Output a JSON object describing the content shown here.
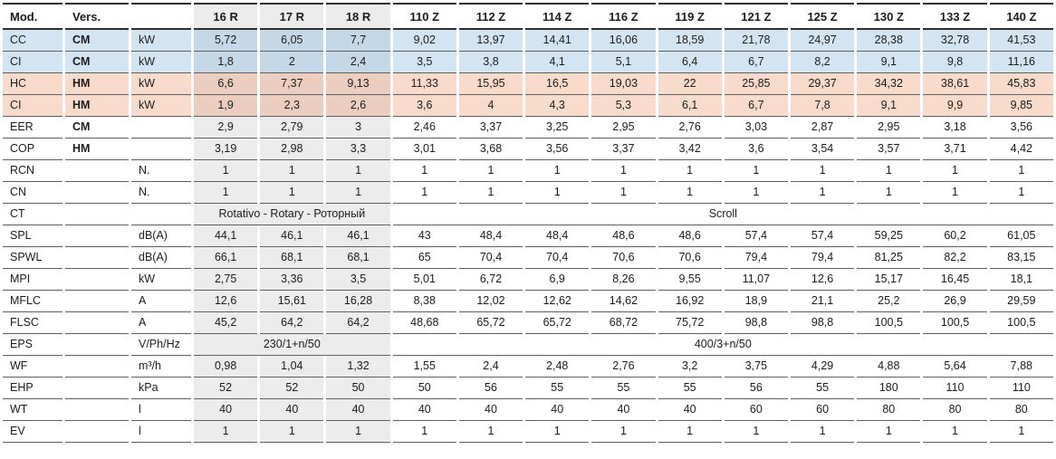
{
  "table": {
    "header": {
      "mod": "Mod.",
      "vers": "Vers.",
      "unit": ""
    },
    "columns": [
      "16 R",
      "17 R",
      "18 R",
      "110 Z",
      "112 Z",
      "114 Z",
      "116 Z",
      "119 Z",
      "121 Z",
      "125 Z",
      "130 Z",
      "133 Z",
      "140 Z"
    ],
    "r_column_count": 3,
    "colors": {
      "blue": "#d3e5f3",
      "blue_r": "#c5d8e8",
      "salmon": "#f8dbca",
      "salmon_r": "#ebcebf",
      "gray": "#ececec"
    },
    "rows": [
      {
        "label": "CC",
        "vers": "CM",
        "unit": "kW",
        "tint": "blue",
        "values": [
          "5,72",
          "6,05",
          "7,7",
          "9,02",
          "13,97",
          "14,41",
          "16,06",
          "18,59",
          "21,78",
          "24,97",
          "28,38",
          "32,78",
          "41,53"
        ]
      },
      {
        "label": "CI",
        "vers": "CM",
        "unit": "kW",
        "tint": "blue",
        "values": [
          "1,8",
          "2",
          "2,4",
          "3,5",
          "3,8",
          "4,1",
          "5,1",
          "6,4",
          "6,7",
          "8,2",
          "9,1",
          "9,8",
          "11,16"
        ]
      },
      {
        "label": "HC",
        "vers": "HM",
        "unit": "kW",
        "tint": "salmon",
        "values": [
          "6,6",
          "7,37",
          "9,13",
          "11,33",
          "15,95",
          "16,5",
          "19,03",
          "22",
          "25,85",
          "29,37",
          "34,32",
          "38,61",
          "45,83"
        ]
      },
      {
        "label": "CI",
        "vers": "HM",
        "unit": "kW",
        "tint": "salmon",
        "values": [
          "1,9",
          "2,3",
          "2,6",
          "3,6",
          "4",
          "4,3",
          "5,3",
          "6,1",
          "6,7",
          "7,8",
          "9,1",
          "9,9",
          "9,85"
        ]
      },
      {
        "label": "EER",
        "vers": "CM",
        "unit": "",
        "tint": null,
        "values": [
          "2,9",
          "2,79",
          "3",
          "2,46",
          "3,37",
          "3,25",
          "2,95",
          "2,76",
          "3,03",
          "2,87",
          "2,95",
          "3,18",
          "3,56"
        ]
      },
      {
        "label": "COP",
        "vers": "HM",
        "unit": "",
        "tint": null,
        "values": [
          "3,19",
          "2,98",
          "3,3",
          "3,01",
          "3,68",
          "3,56",
          "3,37",
          "3,42",
          "3,6",
          "3,54",
          "3,57",
          "3,71",
          "4,42"
        ]
      },
      {
        "label": "RCN",
        "vers": "",
        "unit": "N.",
        "tint": null,
        "values": [
          "1",
          "1",
          "1",
          "1",
          "1",
          "1",
          "1",
          "1",
          "1",
          "1",
          "1",
          "1",
          "1"
        ]
      },
      {
        "label": "CN",
        "vers": "",
        "unit": "N.",
        "tint": null,
        "values": [
          "1",
          "1",
          "1",
          "1",
          "1",
          "1",
          "1",
          "1",
          "1",
          "1",
          "1",
          "1",
          "1"
        ]
      },
      {
        "label": "CT",
        "vers": "",
        "unit": "",
        "tint": null,
        "span_r": "Rotativo - Rotary - Роторный",
        "span_z": "Scroll"
      },
      {
        "label": "SPL",
        "vers": "",
        "unit": "dB(A)",
        "tint": null,
        "values": [
          "44,1",
          "46,1",
          "46,1",
          "43",
          "48,4",
          "48,4",
          "48,6",
          "48,6",
          "57,4",
          "57,4",
          "59,25",
          "60,2",
          "61,05"
        ]
      },
      {
        "label": "SPWL",
        "vers": "",
        "unit": "dB(A)",
        "tint": null,
        "values": [
          "66,1",
          "68,1",
          "68,1",
          "65",
          "70,4",
          "70,4",
          "70,6",
          "70,6",
          "79,4",
          "79,4",
          "81,25",
          "82,2",
          "83,15"
        ]
      },
      {
        "label": "MPI",
        "vers": "",
        "unit": "kW",
        "tint": null,
        "values": [
          "2,75",
          "3,36",
          "3,5",
          "5,01",
          "6,72",
          "6,9",
          "8,26",
          "9,55",
          "11,07",
          "12,6",
          "15,17",
          "16,45",
          "18,1"
        ]
      },
      {
        "label": "MFLC",
        "vers": "",
        "unit": "A",
        "tint": null,
        "values": [
          "12,6",
          "15,61",
          "16,28",
          "8,38",
          "12,02",
          "12,62",
          "14,62",
          "16,92",
          "18,9",
          "21,1",
          "25,2",
          "26,9",
          "29,59"
        ]
      },
      {
        "label": "FLSC",
        "vers": "",
        "unit": "A",
        "tint": null,
        "values": [
          "45,2",
          "64,2",
          "64,2",
          "48,68",
          "65,72",
          "65,72",
          "68,72",
          "75,72",
          "98,8",
          "98,8",
          "100,5",
          "100,5",
          "100,5"
        ]
      },
      {
        "label": "EPS",
        "vers": "",
        "unit": "V/Ph/Hz",
        "tint": null,
        "span_r": "230/1+n/50",
        "span_z": "400/3+n/50"
      },
      {
        "label": "WF",
        "vers": "",
        "unit": "m³/h",
        "tint": null,
        "values": [
          "0,98",
          "1,04",
          "1,32",
          "1,55",
          "2,4",
          "2,48",
          "2,76",
          "3,2",
          "3,75",
          "4,29",
          "4,88",
          "5,64",
          "7,88"
        ]
      },
      {
        "label": "EHP",
        "vers": "",
        "unit": "kPa",
        "tint": null,
        "values": [
          "52",
          "52",
          "50",
          "50",
          "56",
          "55",
          "55",
          "55",
          "56",
          "55",
          "180",
          "110",
          "110"
        ]
      },
      {
        "label": "WT",
        "vers": "",
        "unit": "l",
        "tint": null,
        "values": [
          "40",
          "40",
          "40",
          "40",
          "40",
          "40",
          "40",
          "40",
          "60",
          "60",
          "80",
          "80",
          "80"
        ]
      },
      {
        "label": "EV",
        "vers": "",
        "unit": "l",
        "tint": null,
        "values": [
          "1",
          "1",
          "1",
          "1",
          "1",
          "1",
          "1",
          "1",
          "1",
          "1",
          "1",
          "1",
          "1"
        ]
      }
    ]
  }
}
